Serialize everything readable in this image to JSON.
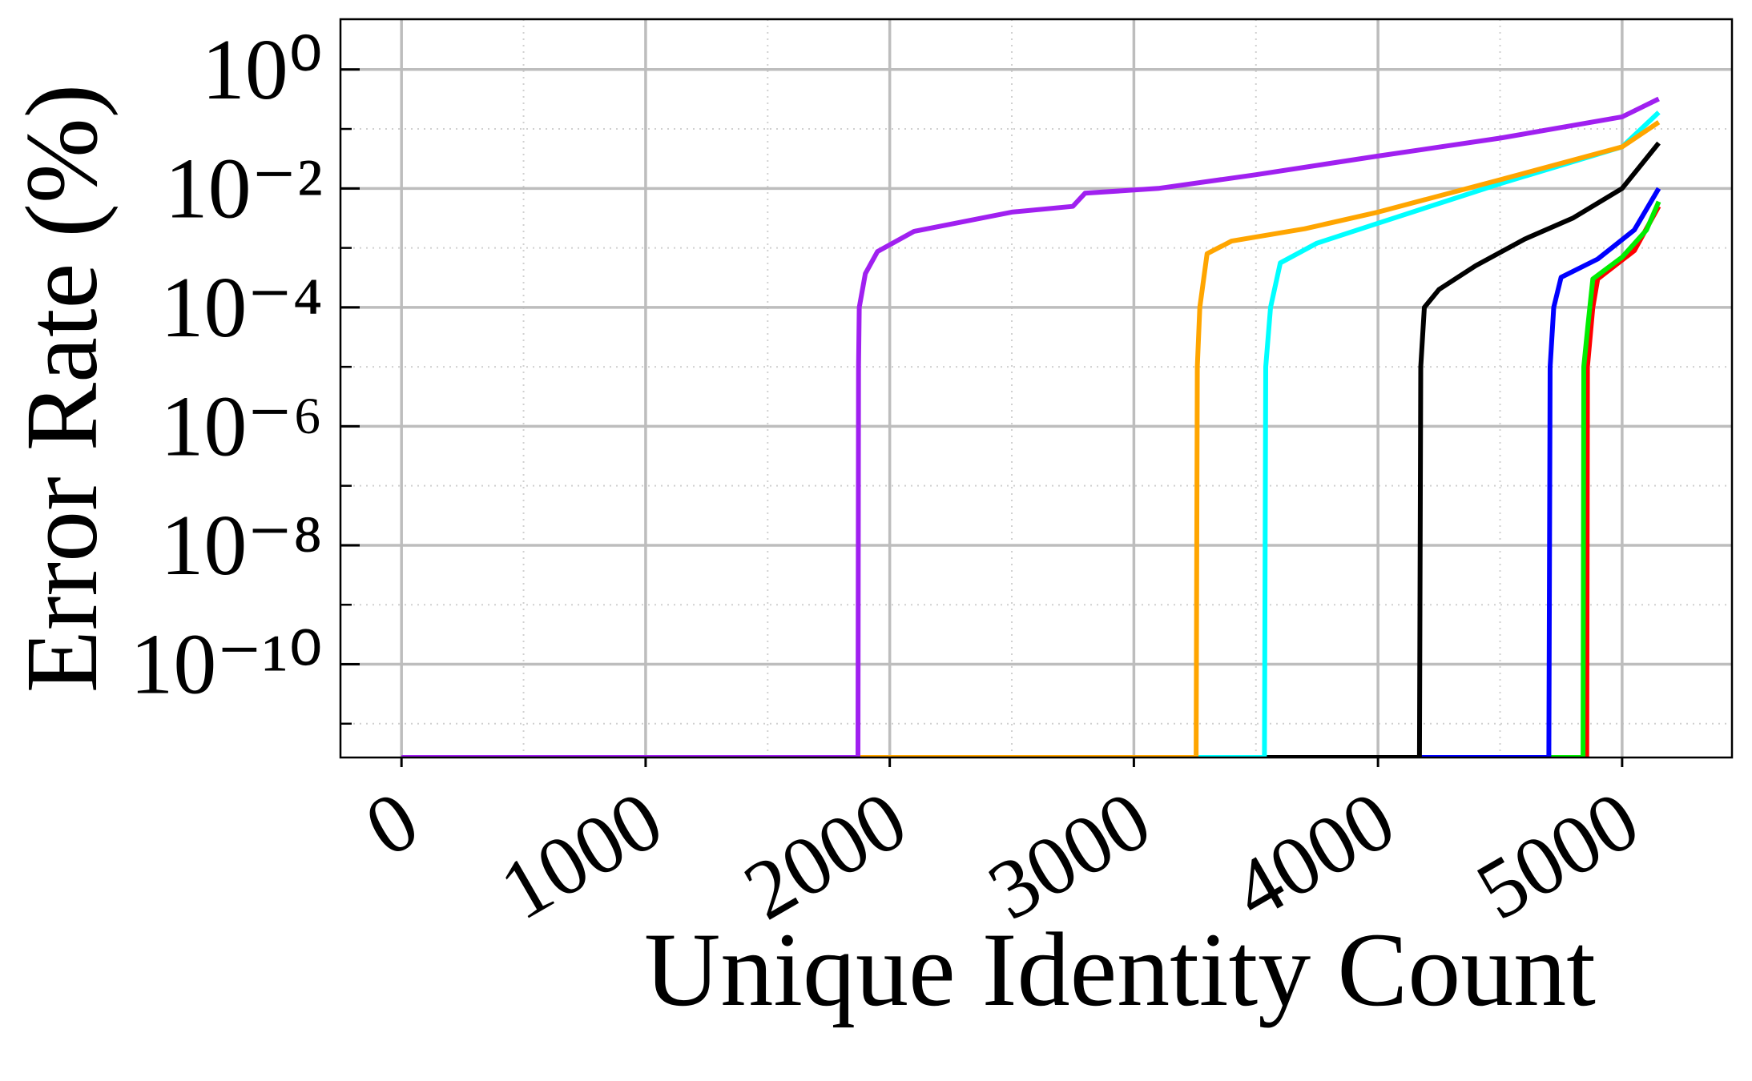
{
  "chart_data": {
    "type": "line",
    "xlabel": "Unique Identity Count",
    "ylabel": "Error Rate (%)",
    "log_y": true,
    "grid": true,
    "xlim": [
      -250,
      5450
    ],
    "ylim": [
      2.7e-12,
      7
    ],
    "xticks": [
      0,
      1000,
      2000,
      3000,
      4000,
      5000
    ],
    "xminorticks": [
      500,
      1500,
      2500,
      3500,
      4500
    ],
    "yticks": [
      {
        "value": 1,
        "label": "10⁰"
      },
      {
        "value": 0.01,
        "label": "10⁻²"
      },
      {
        "value": 0.0001,
        "label": "10⁻⁴"
      },
      {
        "value": 1e-06,
        "label": "10⁻⁶"
      },
      {
        "value": 1e-08,
        "label": "10⁻⁸"
      },
      {
        "value": 1e-10,
        "label": "10⁻¹⁰"
      }
    ],
    "yminorticks": [
      0.1,
      0.001,
      1e-05,
      1e-07,
      1e-09,
      1e-11
    ],
    "series": [
      {
        "color": "#ff0000",
        "x": [
          0,
          4855,
          4858,
          4880,
          4900,
          5050,
          5150
        ],
        "values": [
          0,
          0,
          1e-05,
          0.0001,
          0.0003,
          0.0009,
          0.005
        ]
      },
      {
        "color": "#00ee00",
        "x": [
          0,
          4840,
          4843,
          4860,
          4880,
          5000,
          5100,
          5150
        ],
        "values": [
          0,
          0,
          1e-05,
          5e-05,
          0.0003,
          0.0007,
          0.002,
          0.006
        ]
      },
      {
        "color": "#0000ff",
        "x": [
          0,
          4700,
          4705,
          4720,
          4750,
          4900,
          5050,
          5150
        ],
        "values": [
          0,
          0,
          1e-05,
          0.0001,
          0.00032,
          0.00065,
          0.002,
          0.01
        ]
      },
      {
        "color": "#000000",
        "x": [
          0,
          4170,
          4175,
          4190,
          4250,
          4400,
          4600,
          4800,
          5000,
          5150
        ],
        "values": [
          0,
          0,
          1e-05,
          0.0001,
          0.0002,
          0.0005,
          0.0014,
          0.0032,
          0.01,
          0.058
        ]
      },
      {
        "color": "#00ffff",
        "x": [
          0,
          3535,
          3540,
          3560,
          3600,
          3750,
          4000,
          4500,
          5000,
          5150
        ],
        "values": [
          0,
          0,
          1e-05,
          0.0001,
          0.00056,
          0.0012,
          0.0026,
          0.012,
          0.05,
          0.19
        ]
      },
      {
        "color": "#ffa500",
        "x": [
          0,
          3255,
          3260,
          3270,
          3300,
          3400,
          3700,
          4000,
          4500,
          5000,
          5150
        ],
        "values": [
          0,
          0,
          1e-05,
          0.0001,
          0.0008,
          0.0013,
          0.0021,
          0.004,
          0.014,
          0.05,
          0.13
        ]
      },
      {
        "color": "#a020f0",
        "x": [
          0,
          1870,
          1872,
          1875,
          1900,
          1950,
          2100,
          2500,
          2750,
          2800,
          3100,
          3500,
          4000,
          4500,
          5000,
          5150
        ],
        "values": [
          0,
          0,
          1e-05,
          0.0001,
          0.00037,
          0.00087,
          0.0019,
          0.004,
          0.005,
          0.0083,
          0.01,
          0.017,
          0.035,
          0.07,
          0.16,
          0.32
        ]
      }
    ]
  }
}
